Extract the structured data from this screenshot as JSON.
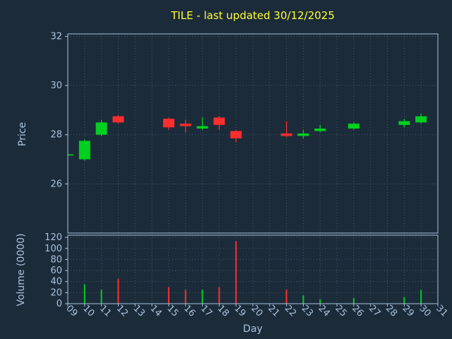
{
  "chart_data": {
    "type": "candlestick_with_volume",
    "title": "TILE - last updated 30/12/2025",
    "xlabel": "Day",
    "price_ylabel": "Price",
    "volume_ylabel": "Volume (0000)",
    "x_ticks": [
      "09",
      "10",
      "11",
      "12",
      "13",
      "14",
      "15",
      "16",
      "17",
      "18",
      "19",
      "20",
      "21",
      "22",
      "23",
      "24",
      "25",
      "26",
      "27",
      "28",
      "29",
      "30",
      "31"
    ],
    "x_range": [
      9,
      31
    ],
    "price_ticks": [
      26,
      28,
      30,
      32
    ],
    "price_ylim": [
      24,
      32.1
    ],
    "volume_ticks": [
      0,
      20,
      40,
      60,
      80,
      100,
      120
    ],
    "volume_ylim": [
      0,
      124
    ],
    "grid": true,
    "legend": "none",
    "colors": {
      "up": "#00d020",
      "down": "#ff2d2d",
      "background": "#1c2b3a",
      "grid": "#46586a",
      "axis": "#a9c3dd",
      "title": "#ffff33",
      "label": "#a9c3dd"
    },
    "candles": [
      {
        "day": 9,
        "open": 27.2,
        "high": 27.25,
        "low": 27.15,
        "close": 27.2,
        "volume": 2
      },
      {
        "day": 10,
        "open": 27.0,
        "high": 27.8,
        "low": 26.95,
        "close": 27.75,
        "volume": 35
      },
      {
        "day": 11,
        "open": 28.0,
        "high": 28.6,
        "low": 27.95,
        "close": 28.5,
        "volume": 25
      },
      {
        "day": 12,
        "open": 28.75,
        "high": 28.8,
        "low": 28.45,
        "close": 28.5,
        "volume": 45
      },
      {
        "day": 15,
        "open": 28.65,
        "high": 28.7,
        "low": 28.2,
        "close": 28.3,
        "volume": 30
      },
      {
        "day": 16,
        "open": 28.45,
        "high": 28.6,
        "low": 28.1,
        "close": 28.35,
        "volume": 25
      },
      {
        "day": 17,
        "open": 28.25,
        "high": 28.7,
        "low": 28.2,
        "close": 28.35,
        "volume": 25
      },
      {
        "day": 18,
        "open": 28.7,
        "high": 28.75,
        "low": 28.2,
        "close": 28.4,
        "volume": 30
      },
      {
        "day": 19,
        "open": 28.15,
        "high": 28.2,
        "low": 27.7,
        "close": 27.85,
        "volume": 113
      },
      {
        "day": 22,
        "open": 28.05,
        "high": 28.55,
        "low": 27.9,
        "close": 27.95,
        "volume": 25
      },
      {
        "day": 23,
        "open": 27.95,
        "high": 28.2,
        "low": 27.85,
        "close": 28.05,
        "volume": 15
      },
      {
        "day": 24,
        "open": 28.15,
        "high": 28.4,
        "low": 28.1,
        "close": 28.25,
        "volume": 8
      },
      {
        "day": 26,
        "open": 28.25,
        "high": 28.5,
        "low": 28.2,
        "close": 28.45,
        "volume": 10
      },
      {
        "day": 29,
        "open": 28.4,
        "high": 28.65,
        "low": 28.3,
        "close": 28.55,
        "volume": 12
      },
      {
        "day": 30,
        "open": 28.5,
        "high": 28.85,
        "low": 28.45,
        "close": 28.75,
        "volume": 25
      }
    ]
  }
}
